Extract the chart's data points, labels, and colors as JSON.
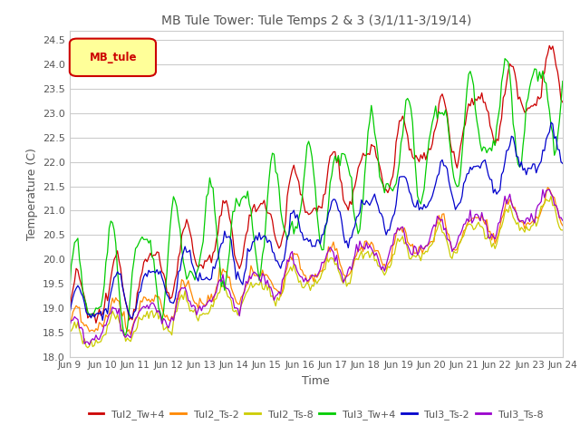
{
  "title": "MB Tule Tower: Tule Temps 2 & 3 (3/1/11-3/19/14)",
  "xlabel": "Time",
  "ylabel": "Temperature (C)",
  "ylim": [
    18.0,
    24.7
  ],
  "yticks": [
    18.0,
    18.5,
    19.0,
    19.5,
    20.0,
    20.5,
    21.0,
    21.5,
    22.0,
    22.5,
    23.0,
    23.5,
    24.0,
    24.5
  ],
  "xtick_labels": [
    "Jun 9",
    "Jun 10",
    "Jun 11",
    "Jun 12",
    "Jun 13",
    "Jun 14",
    "Jun 15",
    "Jun 16",
    "Jun 17",
    "Jun 18",
    "Jun 19",
    "Jun 20",
    "Jun 21",
    "Jun 22",
    "Jun 23",
    "Jun 24"
  ],
  "series_names": [
    "Tul2_Tw+4",
    "Tul2_Ts-2",
    "Tul2_Ts-8",
    "Tul3_Tw+4",
    "Tul3_Ts-2",
    "Tul3_Ts-8"
  ],
  "series_colors": [
    "#cc0000",
    "#ff8800",
    "#cccc00",
    "#00cc00",
    "#0000cc",
    "#9900cc"
  ],
  "legend_label": "MB_tule",
  "legend_box_color": "#ffff99",
  "legend_box_edge": "#cc0000",
  "bg_color": "#ffffff",
  "grid_color": "#cccccc",
  "title_color": "#555555"
}
